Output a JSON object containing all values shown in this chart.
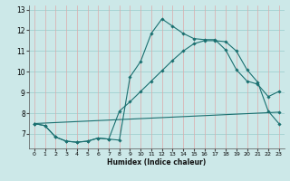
{
  "xlabel": "Humidex (Indice chaleur)",
  "xlim": [
    -0.5,
    23.5
  ],
  "ylim": [
    6.3,
    13.2
  ],
  "yticks": [
    7,
    8,
    9,
    10,
    11,
    12,
    13
  ],
  "xticks": [
    0,
    1,
    2,
    3,
    4,
    5,
    6,
    7,
    8,
    9,
    10,
    11,
    12,
    13,
    14,
    15,
    16,
    17,
    18,
    19,
    20,
    21,
    22,
    23
  ],
  "bg_color": "#cce8e8",
  "grid_h_color": "#99cccc",
  "grid_v_color": "#ddaaaa",
  "line_color": "#1a7070",
  "curve1_x": [
    0,
    1,
    2,
    3,
    4,
    5,
    6,
    7,
    8,
    9,
    10,
    11,
    12,
    13,
    14,
    15,
    16,
    17,
    18,
    19,
    20,
    21,
    22,
    23
  ],
  "curve1_y": [
    7.5,
    7.4,
    6.85,
    6.65,
    6.6,
    6.65,
    6.8,
    6.75,
    6.7,
    9.75,
    10.5,
    11.85,
    12.55,
    12.2,
    11.85,
    11.6,
    11.55,
    11.55,
    11.05,
    10.1,
    9.55,
    9.4,
    8.8,
    9.05
  ],
  "curve2_x": [
    0,
    1,
    2,
    3,
    4,
    5,
    6,
    7,
    8,
    9,
    10,
    11,
    12,
    13,
    14,
    15,
    16,
    17,
    18,
    19,
    20,
    21,
    22,
    23
  ],
  "curve2_y": [
    7.5,
    7.4,
    6.85,
    6.65,
    6.6,
    6.65,
    6.8,
    6.75,
    8.1,
    8.55,
    9.05,
    9.55,
    10.05,
    10.55,
    11.0,
    11.35,
    11.5,
    11.5,
    11.45,
    11.0,
    10.1,
    9.5,
    8.1,
    7.5
  ],
  "curve3_x": [
    0,
    23
  ],
  "curve3_y": [
    7.5,
    8.05
  ]
}
